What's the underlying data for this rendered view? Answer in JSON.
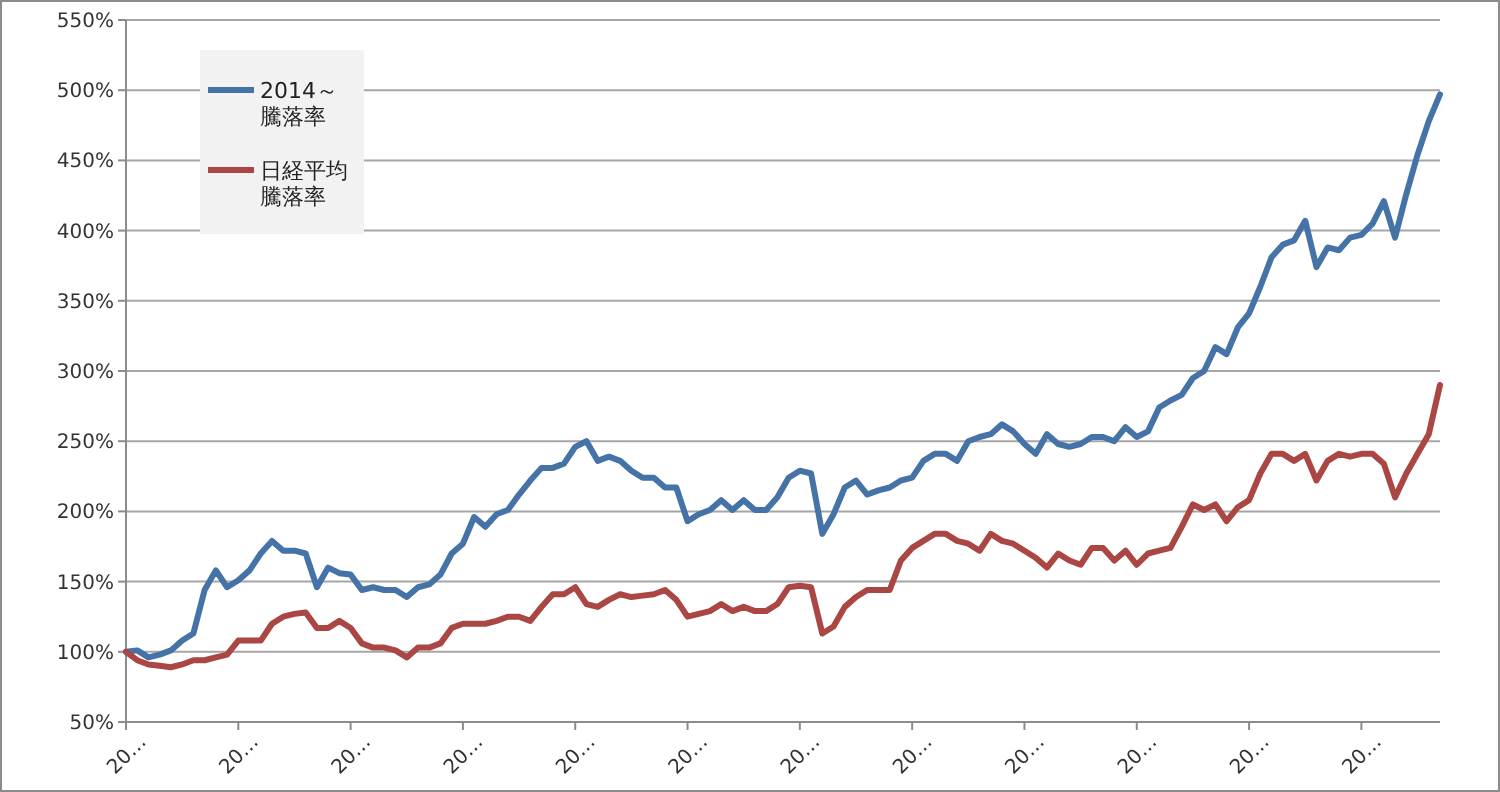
{
  "chart_data": {
    "type": "line",
    "categories": [
      "20…",
      null,
      null,
      null,
      null,
      null,
      null,
      null,
      null,
      null,
      "20…",
      null,
      null,
      null,
      null,
      null,
      null,
      null,
      null,
      null,
      "20…",
      null,
      null,
      null,
      null,
      null,
      null,
      null,
      null,
      null,
      "20…",
      null,
      null,
      null,
      null,
      null,
      null,
      null,
      null,
      null,
      "20…",
      null,
      null,
      null,
      null,
      null,
      null,
      null,
      null,
      null,
      "20…",
      null,
      null,
      null,
      null,
      null,
      null,
      null,
      null,
      null,
      "20…",
      null,
      null,
      null,
      null,
      null,
      null,
      null,
      null,
      null,
      "20…",
      null,
      null,
      null,
      null,
      null,
      null,
      null,
      null,
      null,
      "20…",
      null,
      null,
      null,
      null,
      null,
      null,
      null,
      null,
      null,
      "20…",
      null,
      null,
      null,
      null,
      null,
      null,
      null,
      null,
      null,
      "20…",
      null,
      null,
      null,
      null,
      null,
      null,
      null,
      null,
      null,
      "20…",
      null,
      null,
      null,
      null,
      null,
      null,
      null
    ],
    "series": [
      {
        "name": "2014～騰落率",
        "color": "#4572a7",
        "values": [
          100,
          101,
          96,
          98,
          101,
          108,
          113,
          144,
          158,
          146,
          151,
          158,
          170,
          179,
          172,
          172,
          170,
          146,
          160,
          156,
          155,
          144,
          146,
          144,
          144,
          139,
          146,
          148,
          155,
          170,
          177,
          196,
          189,
          198,
          201,
          212,
          222,
          231,
          231,
          234,
          246,
          250,
          236,
          239,
          236,
          229,
          224,
          224,
          217,
          217,
          193,
          198,
          201,
          208,
          201,
          208,
          201,
          201,
          210,
          224,
          229,
          227,
          184,
          198,
          217,
          222,
          212,
          215,
          217,
          222,
          224,
          236,
          241,
          241,
          236,
          250,
          253,
          255,
          262,
          257,
          248,
          241,
          255,
          248,
          246,
          248,
          253,
          253,
          250,
          260,
          253,
          257,
          274,
          279,
          283,
          295,
          300,
          317,
          312,
          331,
          341,
          360,
          381,
          390,
          393,
          407,
          374,
          388,
          386,
          395,
          397,
          405,
          421,
          395,
          426,
          454,
          478,
          497
        ]
      },
      {
        "name": "日経平均騰落率",
        "color": "#aa4643",
        "values": [
          100,
          94,
          91,
          90,
          89,
          91,
          94,
          94,
          96,
          98,
          108,
          108,
          108,
          120,
          125,
          127,
          128,
          117,
          117,
          122,
          117,
          106,
          103,
          103,
          101,
          96,
          103,
          103,
          106,
          117,
          120,
          120,
          120,
          122,
          125,
          125,
          122,
          132,
          141,
          141,
          146,
          134,
          132,
          137,
          141,
          139,
          140,
          141,
          144,
          137,
          125,
          127,
          129,
          134,
          129,
          132,
          129,
          129,
          134,
          146,
          147,
          146,
          113,
          118,
          132,
          139,
          144,
          144,
          144,
          165,
          174,
          179,
          184,
          184,
          179,
          177,
          172,
          184,
          179,
          177,
          172,
          167,
          160,
          170,
          165,
          162,
          174,
          174,
          165,
          172,
          162,
          170,
          172,
          174,
          189,
          205,
          201,
          205,
          193,
          203,
          208,
          227,
          241,
          241,
          236,
          241,
          222,
          236,
          241,
          239,
          241,
          241,
          234,
          210,
          227,
          241,
          255,
          290
        ]
      }
    ],
    "ylim": [
      50,
      550
    ],
    "yticks": [
      {
        "value": 50,
        "label": "50%"
      },
      {
        "value": 100,
        "label": "100%"
      },
      {
        "value": 150,
        "label": "150%"
      },
      {
        "value": 200,
        "label": "200%"
      },
      {
        "value": 250,
        "label": "250%"
      },
      {
        "value": 300,
        "label": "300%"
      },
      {
        "value": 350,
        "label": "350%"
      },
      {
        "value": 400,
        "label": "400%"
      },
      {
        "value": 450,
        "label": "450%"
      },
      {
        "value": 500,
        "label": "500%"
      },
      {
        "value": 550,
        "label": "550%"
      }
    ],
    "grid": "y",
    "legend": "top left",
    "marker": "none",
    "line_style": "solid"
  }
}
